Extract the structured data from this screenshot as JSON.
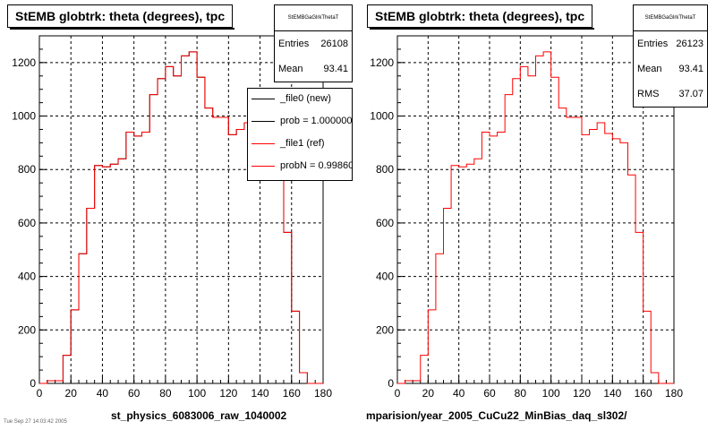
{
  "chart_data": [
    {
      "type": "line",
      "title": "StEMB globtrk: theta (degrees), tpc",
      "stats_name": "StEMBGaGlrkThetaT",
      "stats": [
        {
          "label": "Entries",
          "value": "26108"
        },
        {
          "label": "Mean",
          "value": "93.41"
        }
      ],
      "legend": [
        {
          "label": "_file0 (new)",
          "color": "#000000"
        },
        {
          "label": "prob = 1.000000",
          "color": "#000000"
        },
        {
          "label": "_file1 (ref)",
          "color": "#ff0000"
        },
        {
          "label": "probN = 0.998600",
          "color": "#ff0000"
        }
      ],
      "file_label": "st_physics_6083006_raw_1040002",
      "xlim": [
        0,
        180
      ],
      "ylim": [
        0,
        1300
      ],
      "x_ticks": [
        "0",
        "20",
        "40",
        "60",
        "80",
        "100",
        "120",
        "140",
        "160",
        "180"
      ],
      "y_ticks": [
        "0",
        "200",
        "400",
        "600",
        "800",
        "1000",
        "1200"
      ],
      "bin_width": 5,
      "x": [
        0,
        5,
        10,
        15,
        20,
        25,
        30,
        35,
        40,
        45,
        50,
        55,
        60,
        65,
        70,
        75,
        80,
        85,
        90,
        95,
        100,
        105,
        110,
        115,
        120,
        125,
        130,
        135,
        140,
        145,
        150,
        155,
        160,
        165,
        170,
        175
      ],
      "series": [
        {
          "name": "_file0 (new)",
          "color": "#000000",
          "values": [
            0,
            10,
            10,
            105,
            275,
            485,
            655,
            815,
            810,
            820,
            840,
            940,
            925,
            940,
            1080,
            1140,
            1185,
            1150,
            1225,
            1240,
            1145,
            1030,
            995,
            995,
            930,
            950,
            975,
            935,
            915,
            900,
            780,
            565,
            270,
            40,
            0,
            0
          ]
        },
        {
          "name": "_file1 (ref)",
          "color": "#ff0000",
          "values": [
            0,
            10,
            10,
            105,
            275,
            485,
            655,
            815,
            810,
            820,
            840,
            940,
            925,
            940,
            1080,
            1140,
            1185,
            1150,
            1225,
            1240,
            1145,
            1030,
            995,
            995,
            930,
            950,
            975,
            935,
            915,
            900,
            780,
            565,
            270,
            40,
            0,
            0
          ]
        }
      ]
    },
    {
      "type": "line",
      "title": "StEMB globtrk: theta (degrees), tpc",
      "stats_name": "StEMBGaGlrkThetaT",
      "stats": [
        {
          "label": "Entries",
          "value": "26123"
        },
        {
          "label": "Mean",
          "value": "93.41"
        },
        {
          "label": "RMS",
          "value": "37.07"
        }
      ],
      "file_label": "mparision/year_2005_CuCu22_MinBias_daq_sl302/",
      "xlim": [
        0,
        180
      ],
      "ylim": [
        0,
        1300
      ],
      "x_ticks": [
        "0",
        "20",
        "40",
        "60",
        "80",
        "100",
        "120",
        "140",
        "160",
        "180"
      ],
      "y_ticks": [
        "0",
        "200",
        "400",
        "600",
        "800",
        "1000",
        "1200"
      ],
      "bin_width": 5,
      "x": [
        0,
        5,
        10,
        15,
        20,
        25,
        30,
        35,
        40,
        45,
        50,
        55,
        60,
        65,
        70,
        75,
        80,
        85,
        90,
        95,
        100,
        105,
        110,
        115,
        120,
        125,
        130,
        135,
        140,
        145,
        150,
        155,
        160,
        165,
        170,
        175
      ],
      "series": [
        {
          "name": "_file1 (ref)",
          "color": "#ff0000",
          "values": [
            0,
            10,
            10,
            105,
            275,
            485,
            655,
            815,
            810,
            820,
            840,
            940,
            925,
            940,
            1080,
            1140,
            1185,
            1150,
            1225,
            1240,
            1145,
            1030,
            995,
            995,
            930,
            950,
            975,
            935,
            915,
            900,
            780,
            565,
            270,
            40,
            0,
            0
          ]
        }
      ]
    }
  ],
  "footer_note": "Tue Sep 27 14:03:42 2005"
}
